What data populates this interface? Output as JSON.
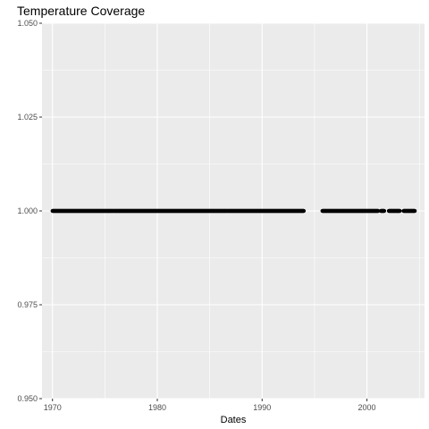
{
  "chart_data": {
    "type": "scatter",
    "title": "Temperature Coverage",
    "xlabel": "Dates",
    "ylabel": "",
    "xlim": [
      "1969-01-01",
      "2005-07-01"
    ],
    "ylim": [
      0.95,
      1.05
    ],
    "x_ticks": [
      1970,
      1980,
      1990,
      2000
    ],
    "x_tick_labels": [
      "1970",
      "1980",
      "1990",
      "2000"
    ],
    "y_ticks": [
      0.95,
      0.975,
      1.0,
      1.025,
      1.05
    ],
    "y_tick_labels": [
      "0.950",
      "0.975",
      "1.000",
      "1.025",
      "1.050"
    ],
    "grid": true,
    "background_color": "#ebebeb",
    "grid_color": "#ffffff",
    "point_color": "#000000",
    "series": [
      {
        "value": 1.0,
        "date_ranges": [
          [
            "1970-01-01",
            "1993-12-31"
          ],
          [
            "1995-10-01",
            "2001-01-31"
          ],
          [
            "2001-05-01",
            "2001-08-31"
          ],
          [
            "2002-02-01",
            "2003-02-28"
          ],
          [
            "2003-07-01",
            "2004-07-31"
          ]
        ]
      }
    ]
  }
}
